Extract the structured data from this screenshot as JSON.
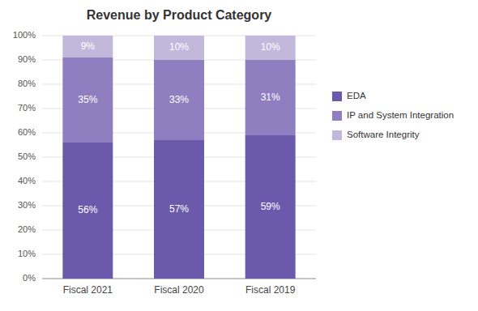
{
  "chart_data": {
    "type": "bar",
    "stacked": true,
    "title": "Revenue by Product Category",
    "categories": [
      "Fiscal 2021",
      "Fiscal 2020",
      "Fiscal 2019"
    ],
    "series": [
      {
        "name": "EDA",
        "color": "#6b5aab",
        "values": [
          56,
          57,
          59
        ],
        "value_labels": [
          "56%",
          "57%",
          "59%"
        ]
      },
      {
        "name": "IP and System Integration",
        "color": "#8f7fc0",
        "values": [
          35,
          33,
          31
        ],
        "value_labels": [
          "35%",
          "33%",
          "31%"
        ]
      },
      {
        "name": "Software Integrity",
        "color": "#c2b8dc",
        "values": [
          9,
          10,
          10
        ],
        "value_labels": [
          "9%",
          "10%",
          "10%"
        ]
      }
    ],
    "ylim": [
      0,
      100
    ],
    "yticks": [
      {
        "value": 0,
        "label": "0%"
      },
      {
        "value": 10,
        "label": "10%"
      },
      {
        "value": 20,
        "label": "20%"
      },
      {
        "value": 30,
        "label": "30%"
      },
      {
        "value": 40,
        "label": "40%"
      },
      {
        "value": 50,
        "label": "50%"
      },
      {
        "value": 60,
        "label": "60%"
      },
      {
        "value": 70,
        "label": "70%"
      },
      {
        "value": 80,
        "label": "80%"
      },
      {
        "value": 90,
        "label": "90%"
      },
      {
        "value": 100,
        "label": "100%"
      }
    ],
    "grid": true,
    "legend": "right",
    "data_labels": true
  }
}
